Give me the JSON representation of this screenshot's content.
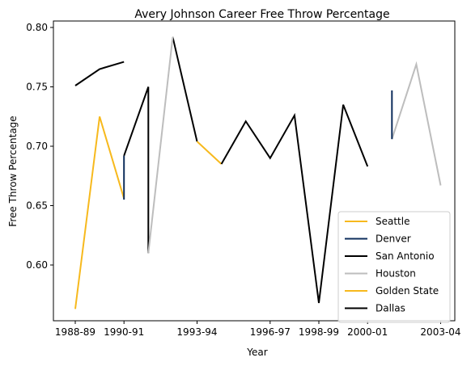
{
  "chart_data": {
    "type": "line",
    "title": "Avery Johnson Career Free Throw Percentage",
    "xlabel": "Year",
    "ylabel": "Free Throw Percentage",
    "x_ticks": [
      "1988-89",
      "1990-91",
      "1993-94",
      "1996-97",
      "1998-99",
      "2000-01",
      "2003-04"
    ],
    "y_ticks": [
      "0.60",
      "0.65",
      "0.70",
      "0.75",
      "0.80"
    ],
    "ylim": [
      0.55,
      0.8
    ],
    "grid": false,
    "legend_position": "lower-right",
    "series": [
      {
        "name": "Seattle",
        "color": "#f7b91d",
        "x": [
          "1988-89",
          "1989-90",
          "1990-91"
        ],
        "y": [
          0.563,
          0.725,
          0.656
        ]
      },
      {
        "name": "Denver",
        "color": "#0e2e5c",
        "x": [
          "1990-91",
          "1990-91"
        ],
        "y": [
          0.655,
          0.692
        ]
      },
      {
        "name": "San Antonio",
        "color": "#000000",
        "x": [
          "1990-91",
          "1991-92",
          "1991-92"
        ],
        "y": [
          0.692,
          0.75,
          0.61
        ]
      },
      {
        "name": "Houston",
        "color": "#bdbdbd",
        "x": [
          "1991-92",
          "1992-93"
        ],
        "y": [
          0.61,
          0.792
        ]
      },
      {
        "name": "Golden State",
        "color": "#f7b91d",
        "x": [
          "1993-94",
          "1994-95"
        ],
        "y": [
          0.704,
          0.685
        ]
      },
      {
        "name": "Dallas",
        "color": "#000000",
        "x": [
          "1994-95",
          "1995-96",
          "1996-97",
          "1997-98",
          "1998-99",
          "1999-00",
          "2000-01"
        ],
        "y": [
          0.685,
          0.721,
          0.69,
          0.726,
          0.568,
          0.735,
          0.683
        ]
      }
    ],
    "extra_lines": [
      {
        "color": "#000000",
        "x": [
          "1988-89",
          "1989-90",
          "1990-91"
        ],
        "y": [
          0.751,
          0.765,
          0.771
        ]
      },
      {
        "color": "#000000",
        "x": [
          "1992-93",
          "1993-94"
        ],
        "y": [
          0.792,
          0.704
        ]
      },
      {
        "color": "#bdbdbd",
        "x": [
          "2001-02",
          "2002-03",
          "2003-04"
        ],
        "y": [
          0.706,
          0.769,
          0.667
        ]
      },
      {
        "color": "#0e2e5c",
        "x": [
          "2001-02",
          "2001-02"
        ],
        "y": [
          0.706,
          0.747
        ]
      }
    ]
  }
}
